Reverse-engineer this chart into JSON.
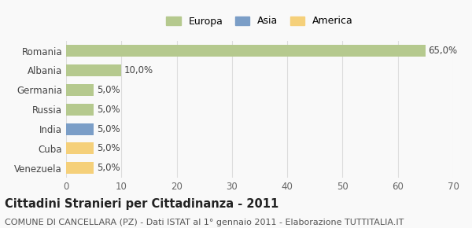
{
  "categories": [
    "Romania",
    "Albania",
    "Germania",
    "Russia",
    "India",
    "Cuba",
    "Venezuela"
  ],
  "values": [
    65.0,
    10.0,
    5.0,
    5.0,
    5.0,
    5.0,
    5.0
  ],
  "colors": [
    "#b5c98e",
    "#b5c98e",
    "#b5c98e",
    "#b5c98e",
    "#7b9ec7",
    "#f5d07a",
    "#f5d07a"
  ],
  "legend_labels": [
    "Europa",
    "Asia",
    "America"
  ],
  "legend_colors": [
    "#b5c98e",
    "#7b9ec7",
    "#f5d07a"
  ],
  "xlim": [
    0,
    70
  ],
  "xticks": [
    0,
    10,
    20,
    30,
    40,
    50,
    60,
    70
  ],
  "title": "Cittadini Stranieri per Cittadinanza - 2011",
  "subtitle": "COMUNE DI CANCELLARA (PZ) - Dati ISTAT al 1° gennaio 2011 - Elaborazione TUTTITALIA.IT",
  "bg_color": "#f9f9f9",
  "grid_color": "#dddddd",
  "bar_label_fontsize": 8.5,
  "title_fontsize": 10.5,
  "subtitle_fontsize": 8.0,
  "ytick_fontsize": 8.5,
  "xtick_fontsize": 8.5
}
